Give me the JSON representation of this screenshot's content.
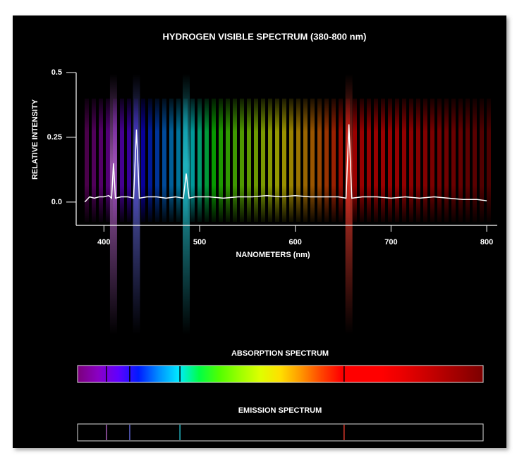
{
  "chart_data": {
    "type": "line",
    "title": "HYDROGEN VISIBLE SPECTRUM (380-800 nm)",
    "x_label": "NANOMETERS (nm)",
    "y_label": "RELATIVE INTENSITY",
    "x": [
      380,
      385,
      390,
      395,
      400,
      405,
      408,
      410,
      412,
      418,
      425,
      431,
      434,
      437,
      445,
      455,
      465,
      475,
      483,
      486,
      489,
      495,
      510,
      525,
      540,
      555,
      570,
      585,
      600,
      615,
      630,
      645,
      653,
      656,
      659,
      670,
      685,
      700,
      715,
      730,
      745,
      760,
      775,
      790,
      800
    ],
    "series": [
      {
        "color": "#ffffff",
        "values": [
          0.0,
          0.02,
          0.015,
          0.02,
          0.02,
          0.025,
          0.015,
          0.15,
          0.015,
          0.02,
          0.02,
          0.015,
          0.28,
          0.015,
          0.02,
          0.02,
          0.015,
          0.02,
          0.015,
          0.11,
          0.015,
          0.02,
          0.02,
          0.015,
          0.02,
          0.02,
          0.025,
          0.02,
          0.025,
          0.02,
          0.02,
          0.02,
          0.015,
          0.3,
          0.015,
          0.02,
          0.02,
          0.015,
          0.02,
          0.015,
          0.02,
          0.015,
          0.01,
          0.01,
          0.005
        ]
      }
    ],
    "xlim": [
      371,
      811
    ],
    "ylim": [
      -0.09,
      0.5
    ],
    "xticks": [
      400,
      500,
      600,
      700,
      800
    ],
    "yticks": [
      {
        "value": 0,
        "label": "0.0"
      },
      0.25,
      0.5
    ]
  },
  "spectra": {
    "absorption_title": "ABSORPTION SPECTRUM",
    "emission_title": "EMISSION SPECTRUM",
    "range": [
      380,
      800
    ],
    "lines": [
      410,
      434,
      486,
      656
    ],
    "line_colors": [
      "#a55cb8",
      "#5a5fc8",
      "#22b5c0",
      "#e0392b"
    ]
  }
}
